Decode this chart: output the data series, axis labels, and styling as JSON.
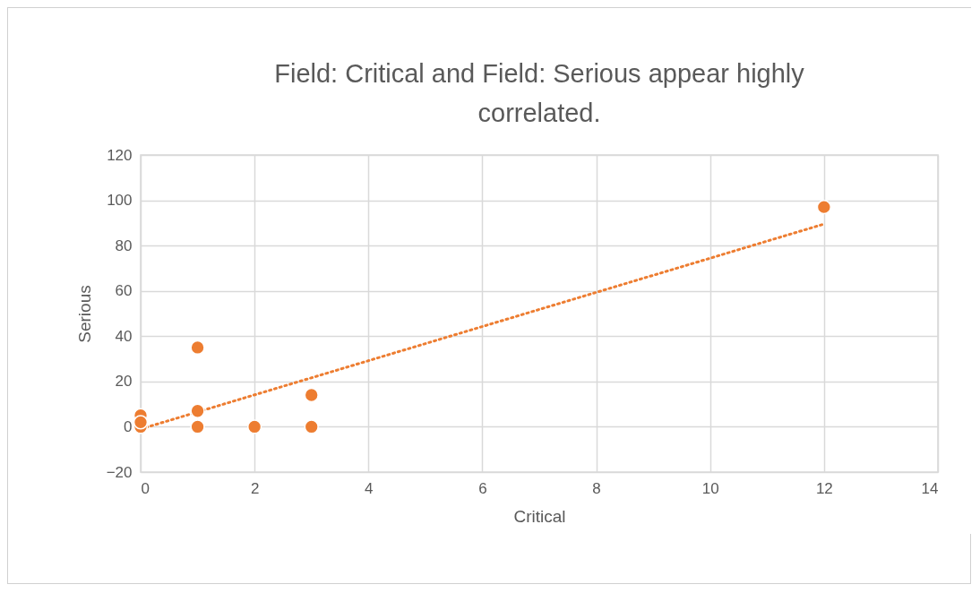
{
  "chart_data": {
    "type": "scatter",
    "title": "Field: Critical and Field: Serious appear highly correlated.",
    "xlabel": "Critical",
    "ylabel": "Serious",
    "xlim": [
      0,
      14
    ],
    "xticks": [
      0,
      2,
      4,
      6,
      8,
      10,
      12,
      14
    ],
    "ylim": [
      -20,
      120
    ],
    "yticks": [
      -20,
      0,
      20,
      40,
      60,
      80,
      100,
      120
    ],
    "grid": true,
    "marker": "circle",
    "series": [
      {
        "color": "#ed7d31",
        "x": [
          0,
          0,
          0,
          1,
          1,
          1,
          2,
          3,
          3,
          12
        ],
        "values": [
          0,
          5,
          2,
          35,
          7,
          0,
          0,
          14,
          0,
          97
        ]
      },
      {
        "type": "line",
        "color": "#ed7d31",
        "line_style": "dotted",
        "marker": "none",
        "x": [
          0,
          12
        ],
        "values": [
          -1,
          89.5
        ]
      }
    ]
  }
}
